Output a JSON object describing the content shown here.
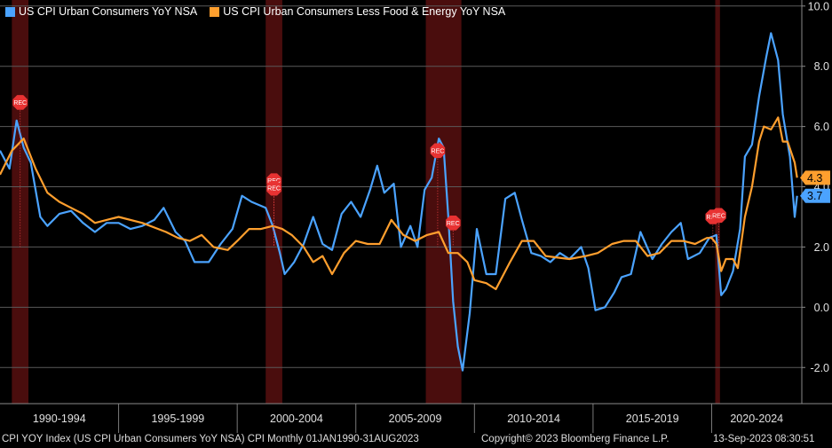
{
  "chart_data": {
    "type": "line",
    "title": "",
    "y_ticks": [
      10,
      8,
      6,
      4,
      2,
      0,
      -2
    ],
    "y_tick_labels": [
      "10.0",
      "8.0",
      "6.0",
      "4.0",
      "2.0",
      "0.0",
      "-2.0"
    ],
    "ylim": [
      -3.2,
      10.2
    ],
    "xlim": [
      1990.0,
      2023.8
    ],
    "x_period_labels": [
      "1990-1994",
      "1995-1999",
      "2000-2004",
      "2005-2009",
      "2010-2014",
      "2015-2019",
      "2020-2024"
    ],
    "x_period_bounds": [
      1990,
      1995,
      2000,
      2005,
      2010,
      2015,
      2020,
      2025
    ],
    "recessions": [
      {
        "start": 1990.5,
        "end": 1991.2
      },
      {
        "start": 2001.2,
        "end": 2001.9
      },
      {
        "start": 2007.95,
        "end": 2009.45
      },
      {
        "start": 2020.15,
        "end": 2020.35
      }
    ],
    "rec_marker_label": "REC",
    "rec_markers": [
      {
        "date": 1990.85,
        "value": 6.8
      },
      {
        "date": 2001.55,
        "value": 4.2
      },
      {
        "date": 2001.55,
        "value": 3.95
      },
      {
        "date": 2008.45,
        "value": 5.2
      },
      {
        "date": 2009.1,
        "value": 2.8
      },
      {
        "date": 2020.05,
        "value": 3.0
      },
      {
        "date": 2020.3,
        "value": 3.05
      }
    ],
    "series": [
      {
        "name": "US CPI Urban Consumers YoY NSA",
        "color": "#4ba3ff",
        "x": [
          1990.0,
          1990.4,
          1990.7,
          1991.0,
          1991.3,
          1991.7,
          1992.0,
          1992.5,
          1993.0,
          1993.5,
          1994.0,
          1994.5,
          1995.0,
          1995.5,
          1996.0,
          1996.5,
          1996.9,
          1997.4,
          1997.8,
          1998.2,
          1998.8,
          1999.3,
          1999.8,
          2000.2,
          2000.6,
          2000.9,
          2001.2,
          2001.5,
          2001.8,
          2002.0,
          2002.4,
          2002.8,
          2003.2,
          2003.6,
          2004.0,
          2004.4,
          2004.8,
          2005.2,
          2005.6,
          2005.9,
          2006.2,
          2006.6,
          2006.9,
          2007.3,
          2007.6,
          2007.9,
          2008.2,
          2008.5,
          2008.7,
          2008.9,
          2009.1,
          2009.3,
          2009.5,
          2009.8,
          2010.1,
          2010.5,
          2010.9,
          2011.3,
          2011.7,
          2012.0,
          2012.4,
          2012.8,
          2013.2,
          2013.6,
          2014.0,
          2014.5,
          2014.8,
          2015.1,
          2015.5,
          2015.9,
          2016.2,
          2016.6,
          2017.0,
          2017.5,
          2017.9,
          2018.3,
          2018.7,
          2019.0,
          2019.5,
          2019.9,
          2020.2,
          2020.4,
          2020.6,
          2020.9,
          2021.2,
          2021.4,
          2021.7,
          2022.0,
          2022.3,
          2022.5,
          2022.8,
          2023.0,
          2023.3,
          2023.5,
          2023.6
        ],
        "y": [
          5.2,
          4.6,
          6.2,
          5.3,
          4.8,
          3.0,
          2.7,
          3.1,
          3.2,
          2.8,
          2.5,
          2.8,
          2.8,
          2.6,
          2.7,
          2.9,
          3.3,
          2.5,
          2.2,
          1.5,
          1.5,
          2.1,
          2.6,
          3.7,
          3.5,
          3.4,
          3.3,
          2.7,
          1.8,
          1.1,
          1.5,
          2.1,
          3.0,
          2.1,
          1.9,
          3.1,
          3.5,
          3.0,
          3.9,
          4.7,
          3.8,
          4.1,
          2.0,
          2.7,
          2.0,
          3.9,
          4.3,
          5.6,
          5.3,
          3.0,
          0.2,
          -1.3,
          -2.1,
          -0.2,
          2.6,
          1.1,
          1.1,
          3.6,
          3.8,
          2.9,
          1.8,
          1.7,
          1.5,
          1.8,
          1.6,
          2.0,
          1.3,
          -0.1,
          0.0,
          0.5,
          1.0,
          1.1,
          2.5,
          1.6,
          2.1,
          2.5,
          2.8,
          1.6,
          1.8,
          2.3,
          2.4,
          0.4,
          0.6,
          1.2,
          2.6,
          5.0,
          5.4,
          7.0,
          8.3,
          9.1,
          8.2,
          6.4,
          5.0,
          3.0,
          3.7
        ]
      },
      {
        "name": "US CPI Urban Consumers Less Food & Energy YoY NSA",
        "color": "#ff9f2e",
        "x": [
          1990.0,
          1990.5,
          1991.0,
          1991.5,
          1992.0,
          1992.5,
          1993.0,
          1993.5,
          1994.0,
          1995.0,
          1996.0,
          1997.0,
          1997.5,
          1998.0,
          1998.5,
          1999.0,
          1999.6,
          2000.0,
          2000.5,
          2001.0,
          2001.5,
          2001.9,
          2002.3,
          2002.8,
          2003.2,
          2003.6,
          2004.0,
          2004.5,
          2005.0,
          2005.5,
          2006.0,
          2006.5,
          2007.0,
          2007.5,
          2008.0,
          2008.5,
          2008.9,
          2009.3,
          2009.7,
          2010.0,
          2010.5,
          2010.9,
          2011.5,
          2012.0,
          2012.5,
          2013.0,
          2014.0,
          2014.7,
          2015.2,
          2015.8,
          2016.3,
          2016.8,
          2017.3,
          2017.8,
          2018.3,
          2018.8,
          2019.3,
          2019.8,
          2020.0,
          2020.2,
          2020.4,
          2020.6,
          2020.9,
          2021.1,
          2021.4,
          2021.7,
          2022.0,
          2022.2,
          2022.5,
          2022.8,
          2023.0,
          2023.2,
          2023.5,
          2023.6
        ],
        "y": [
          4.4,
          5.2,
          5.6,
          4.6,
          3.8,
          3.5,
          3.3,
          3.1,
          2.8,
          3.0,
          2.8,
          2.5,
          2.3,
          2.2,
          2.4,
          2.0,
          1.9,
          2.2,
          2.6,
          2.6,
          2.7,
          2.6,
          2.4,
          2.0,
          1.5,
          1.7,
          1.1,
          1.8,
          2.2,
          2.1,
          2.1,
          2.9,
          2.4,
          2.2,
          2.4,
          2.5,
          1.8,
          1.8,
          1.5,
          0.9,
          0.8,
          0.6,
          1.5,
          2.2,
          2.2,
          1.7,
          1.6,
          1.7,
          1.8,
          2.1,
          2.2,
          2.2,
          1.7,
          1.8,
          2.2,
          2.2,
          2.1,
          2.3,
          2.3,
          2.1,
          1.2,
          1.6,
          1.6,
          1.3,
          3.0,
          4.0,
          5.5,
          6.0,
          5.9,
          6.3,
          5.5,
          5.5,
          4.8,
          4.3
        ]
      }
    ],
    "last_value_labels": [
      {
        "text": "4.3",
        "value": 4.3,
        "series": 1
      },
      {
        "text": "3.7",
        "value": 3.7,
        "series": 0
      }
    ]
  },
  "legend": [
    {
      "label": "US CPI Urban Consumers YoY NSA",
      "color": "#4ba3ff"
    },
    {
      "label": "US CPI Urban Consumers Less Food & Energy YoY NSA",
      "color": "#ff9f2e"
    }
  ],
  "footer": {
    "index_info": "CPI YOY Index (US CPI Urban Consumers YoY NSA) CPI  Monthly 01JAN1990-31AUG2023",
    "copyright": "Copyright© 2023 Bloomberg Finance L.P.",
    "timestamp": "13-Sep-2023 08:30:51"
  }
}
